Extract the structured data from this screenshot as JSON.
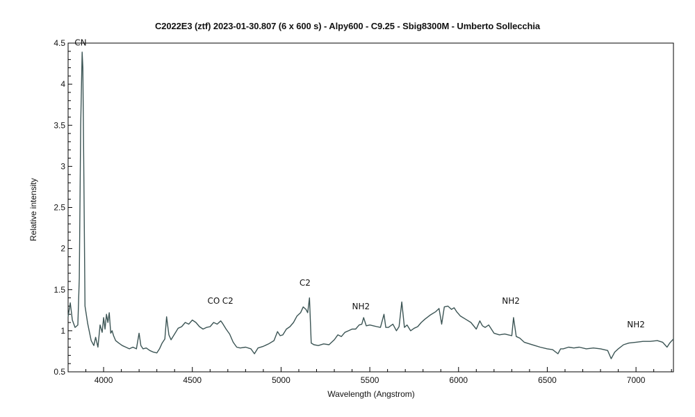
{
  "title": "C2022E3 (ztf)   2023-01-30.807   (6 x 600 s) - Alpy600 - C9.25 - Sbig8300M - Umberto Sollecchia",
  "axes": {
    "xlabel": "Wavelength (Angstrom)",
    "ylabel": "Relative intensity"
  },
  "colors": {
    "line": "#3b5454",
    "axis": "#000000"
  },
  "chart_data": {
    "type": "line",
    "title": "C2022E3 (ztf)   2023-01-30.807   (6 x 600 s) - Alpy600 - C9.25 - Sbig8300M - Umberto Sollecchia",
    "xlabel": "Wavelength (Angstrom)",
    "ylabel": "Relative intensity",
    "xlim": [
      3800,
      7211
    ],
    "ylim": [
      0.5,
      4.5
    ],
    "x_ticks": [
      4000,
      4500,
      5000,
      5500,
      6000,
      6500,
      7000
    ],
    "y_ticks": [
      0.5,
      1,
      1.5,
      2,
      2.5,
      3,
      3.5,
      4,
      4.5
    ],
    "grid": false,
    "legend": null,
    "annotations": [
      {
        "text": "CN",
        "x": 3870,
        "y": 4.47
      },
      {
        "text": "CO",
        "x": 4620,
        "y": 1.33
      },
      {
        "text": "C2",
        "x": 4700,
        "y": 1.33
      },
      {
        "text": "C2",
        "x": 5135,
        "y": 1.55
      },
      {
        "text": "NH2",
        "x": 5450,
        "y": 1.26
      },
      {
        "text": "NH2",
        "x": 6295,
        "y": 1.33
      },
      {
        "text": "NH2",
        "x": 7000,
        "y": 1.04
      }
    ],
    "series": [
      {
        "name": "C2022E3 spectrum",
        "x": [
          3800,
          3812,
          3824,
          3839,
          3855,
          3863,
          3871,
          3879,
          3883,
          3887,
          3895,
          3910,
          3930,
          3945,
          3955,
          3968,
          3980,
          3992,
          4000,
          4008,
          4016,
          4024,
          4032,
          4040,
          4048,
          4056,
          4068,
          4085,
          4105,
          4125,
          4145,
          4165,
          4185,
          4200,
          4210,
          4222,
          4240,
          4260,
          4280,
          4300,
          4315,
          4330,
          4345,
          4355,
          4368,
          4380,
          4400,
          4420,
          4440,
          4460,
          4480,
          4500,
          4520,
          4540,
          4560,
          4580,
          4600,
          4620,
          4640,
          4660,
          4670,
          4690,
          4710,
          4730,
          4750,
          4770,
          4800,
          4830,
          4850,
          4870,
          4900,
          4930,
          4960,
          4980,
          4995,
          5010,
          5030,
          5050,
          5070,
          5090,
          5110,
          5125,
          5140,
          5150,
          5160,
          5170,
          5185,
          5210,
          5240,
          5270,
          5300,
          5320,
          5340,
          5360,
          5380,
          5400,
          5420,
          5440,
          5455,
          5465,
          5480,
          5500,
          5520,
          5540,
          5560,
          5580,
          5590,
          5605,
          5630,
          5650,
          5665,
          5680,
          5695,
          5710,
          5730,
          5750,
          5770,
          5790,
          5810,
          5840,
          5870,
          5890,
          5905,
          5920,
          5940,
          5960,
          5975,
          5990,
          6010,
          6040,
          6070,
          6100,
          6120,
          6135,
          6150,
          6170,
          6185,
          6200,
          6230,
          6260,
          6280,
          6300,
          6310,
          6325,
          6345,
          6370,
          6400,
          6430,
          6460,
          6500,
          6530,
          6560,
          6575,
          6590,
          6620,
          6650,
          6680,
          6720,
          6760,
          6800,
          6840,
          6860,
          6870,
          6880,
          6900,
          6930,
          6960,
          7000,
          7040,
          7080,
          7120,
          7150,
          7175,
          7190,
          7211
        ],
        "y": [
          1.17,
          1.34,
          1.13,
          1.04,
          1.07,
          1.64,
          3.5,
          4.39,
          4.2,
          3.33,
          1.3,
          1.09,
          0.88,
          0.82,
          0.92,
          0.8,
          1.07,
          0.98,
          1.16,
          1.02,
          1.2,
          1.1,
          1.22,
          0.97,
          1.0,
          0.94,
          0.88,
          0.85,
          0.82,
          0.8,
          0.78,
          0.8,
          0.78,
          0.97,
          0.82,
          0.78,
          0.79,
          0.76,
          0.74,
          0.73,
          0.78,
          0.85,
          0.9,
          1.17,
          0.95,
          0.89,
          0.96,
          1.03,
          1.05,
          1.1,
          1.08,
          1.13,
          1.1,
          1.05,
          1.02,
          1.04,
          1.05,
          1.1,
          1.08,
          1.12,
          1.09,
          1.02,
          0.96,
          0.86,
          0.8,
          0.79,
          0.8,
          0.78,
          0.72,
          0.79,
          0.81,
          0.84,
          0.88,
          0.99,
          0.94,
          0.95,
          1.02,
          1.05,
          1.1,
          1.18,
          1.22,
          1.29,
          1.26,
          1.22,
          1.4,
          0.85,
          0.83,
          0.82,
          0.84,
          0.83,
          0.89,
          0.95,
          0.93,
          0.98,
          1.0,
          1.02,
          1.02,
          1.07,
          1.08,
          1.16,
          1.06,
          1.07,
          1.06,
          1.05,
          1.04,
          1.2,
          1.04,
          1.04,
          1.08,
          1.0,
          1.05,
          1.35,
          1.04,
          1.07,
          1.0,
          1.03,
          1.05,
          1.1,
          1.14,
          1.19,
          1.23,
          1.27,
          1.08,
          1.29,
          1.3,
          1.26,
          1.28,
          1.23,
          1.18,
          1.14,
          1.1,
          1.02,
          1.12,
          1.06,
          1.04,
          1.07,
          1.02,
          0.97,
          0.95,
          0.96,
          0.95,
          0.94,
          1.16,
          0.93,
          0.91,
          0.86,
          0.84,
          0.82,
          0.8,
          0.78,
          0.77,
          0.72,
          0.78,
          0.78,
          0.8,
          0.79,
          0.8,
          0.78,
          0.79,
          0.78,
          0.76,
          0.66,
          0.7,
          0.74,
          0.78,
          0.83,
          0.85,
          0.86,
          0.87,
          0.87,
          0.88,
          0.86,
          0.8,
          0.85,
          0.9
        ]
      }
    ]
  }
}
